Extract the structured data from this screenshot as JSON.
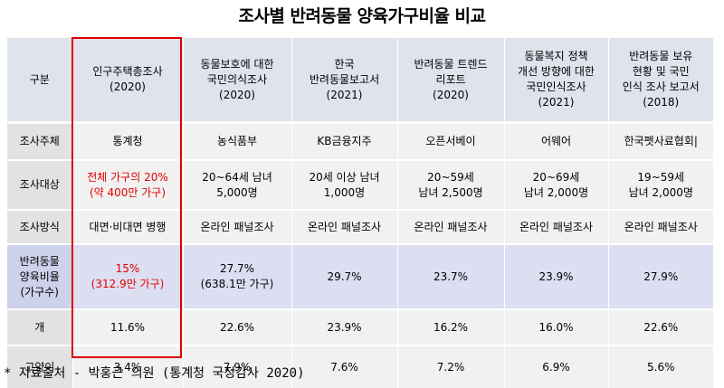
{
  "title": "조사별 반려동물 양육가구비율 비교",
  "header": {
    "label": "구분",
    "surveys": [
      {
        "line1": "인구주택총조사",
        "line2": "",
        "line3": "",
        "year": "(2020)"
      },
      {
        "line1": "동물보호에 대한",
        "line2": "국민의식조사",
        "line3": "",
        "year": "(2020)"
      },
      {
        "line1": "한국",
        "line2": "반려동물보고서",
        "line3": "",
        "year": "(2021)"
      },
      {
        "line1": "반려동물 트렌드",
        "line2": "리포트",
        "line3": "",
        "year": "(2020)"
      },
      {
        "line1": "동물복지 정책",
        "line2": "개선 방향에 대한",
        "line3": "국민인식조사",
        "year": "(2021)"
      },
      {
        "line1": "반려동물 보유",
        "line2": "현황 및 국민",
        "line3": "인식 조사 보고서",
        "year": "(2018)"
      }
    ]
  },
  "rows": {
    "subject": {
      "label": "조사주체",
      "values": [
        "통계청",
        "농식품부",
        "KB금융지주",
        "오픈서베이",
        "어웨어",
        "한국펫사료협회|"
      ]
    },
    "target": {
      "label": "조사대상",
      "values": [
        {
          "a": "전체 가구의 20%",
          "b": "(약 400만 가구)"
        },
        {
          "a": "20~64세 남녀",
          "b": "5,000명"
        },
        {
          "a": "20세 이상 남녀",
          "b": "1,000명"
        },
        {
          "a": "20~59세",
          "b": "남녀 2,500명"
        },
        {
          "a": "20~69세",
          "b": "남녀 2,000명"
        },
        {
          "a": "19~59세",
          "b": "남녀 2,000명"
        }
      ]
    },
    "method": {
      "label": "조사방식",
      "values": [
        "대면·비대면 병행",
        "온라인 패널조사",
        "온라인 패널조사",
        "온라인 패널조사",
        "온라인 패널조사",
        "온라인 패널조사"
      ]
    },
    "rate": {
      "label_a": "반려동물",
      "label_b": "양육비율",
      "label_c": "(가구수)",
      "values": [
        {
          "a": "15%",
          "b": "(312.9만 가구)"
        },
        {
          "a": "27.7%",
          "b": "(638.1만 가구)"
        },
        {
          "a": "29.7%",
          "b": ""
        },
        {
          "a": "23.7%",
          "b": ""
        },
        {
          "a": "23.9%",
          "b": ""
        },
        {
          "a": "27.9%",
          "b": ""
        }
      ]
    },
    "dog": {
      "label": "개",
      "values": [
        "11.6%",
        "22.6%",
        "23.9%",
        "16.2%",
        "16.0%",
        "22.6%"
      ]
    },
    "cat": {
      "label": "고양이",
      "values": [
        "3.4%",
        "7.9%",
        "7.6%",
        "7.2%",
        "6.9%",
        "5.6%"
      ]
    }
  },
  "footnote": "* 자료출처 - 박홍근 의원 (통계청 국정감사 2020)",
  "colors": {
    "highlight": "#e00000",
    "header_bg": "#dfe3ec",
    "rate_row_bg": "#dcdff2",
    "plain_row_bg": "#f1f1f1"
  }
}
